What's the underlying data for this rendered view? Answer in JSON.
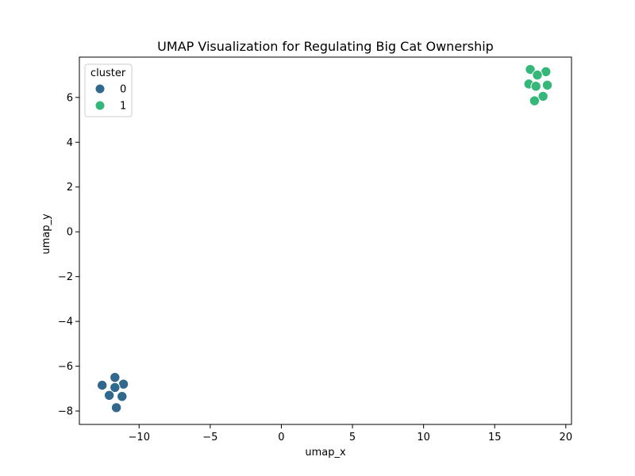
{
  "chart_data": {
    "type": "scatter",
    "title": "UMAP Visualization for Regulating Big Cat Ownership",
    "xlabel": "umap_x",
    "ylabel": "umap_y",
    "xlim": [
      -14.2,
      20.4
    ],
    "ylim": [
      -8.6,
      7.8
    ],
    "xticks": [
      -10,
      -5,
      0,
      5,
      10,
      15,
      20
    ],
    "yticks": [
      -8,
      -6,
      -4,
      -2,
      0,
      2,
      4,
      6
    ],
    "grid": false,
    "legend": {
      "title": "cluster",
      "placement": "top-left",
      "entries": [
        {
          "label": "0",
          "color": "#31688e"
        },
        {
          "label": "1",
          "color": "#35b779"
        }
      ]
    },
    "series": [
      {
        "name": "0",
        "color": "#31688e",
        "points": [
          {
            "x": -12.6,
            "y": -6.85
          },
          {
            "x": -11.7,
            "y": -6.5
          },
          {
            "x": -11.1,
            "y": -6.8
          },
          {
            "x": -11.7,
            "y": -6.95
          },
          {
            "x": -12.1,
            "y": -7.3
          },
          {
            "x": -11.2,
            "y": -7.35
          },
          {
            "x": -11.6,
            "y": -7.85
          }
        ]
      },
      {
        "name": "1",
        "color": "#35b779",
        "points": [
          {
            "x": 17.5,
            "y": 7.25
          },
          {
            "x": 18.6,
            "y": 7.15
          },
          {
            "x": 18.0,
            "y": 7.0
          },
          {
            "x": 17.4,
            "y": 6.6
          },
          {
            "x": 17.9,
            "y": 6.5
          },
          {
            "x": 18.7,
            "y": 6.55
          },
          {
            "x": 18.4,
            "y": 6.05
          },
          {
            "x": 17.8,
            "y": 5.85
          }
        ]
      }
    ]
  }
}
